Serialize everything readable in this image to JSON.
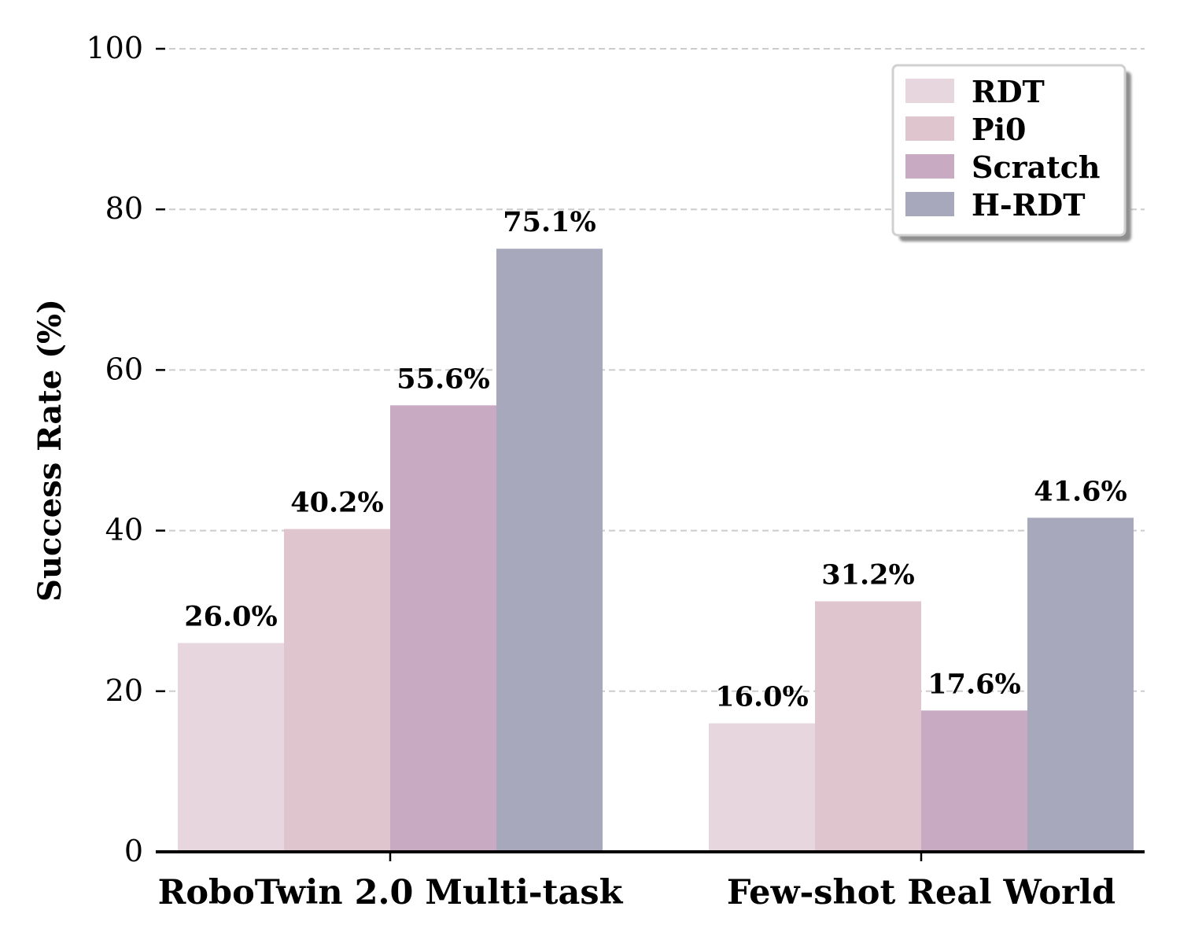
{
  "chart_data": {
    "type": "bar",
    "categories": [
      "RoboTwin 2.0 Multi-task",
      "Few-shot Real World"
    ],
    "series": [
      {
        "name": "RDT",
        "values": [
          26.0,
          16.0
        ],
        "color": "#e8d6de"
      },
      {
        "name": "Pi0",
        "values": [
          40.2,
          31.2
        ],
        "color": "#dfc6ce"
      },
      {
        "name": "Scratch",
        "values": [
          55.6,
          17.6
        ],
        "color": "#c8abc3"
      },
      {
        "name": "H-RDT",
        "values": [
          75.1,
          41.6
        ],
        "color": "#a8a8bd"
      }
    ],
    "data_labels": [
      [
        "26.0%",
        "16.0%"
      ],
      [
        "40.2%",
        "31.2%"
      ],
      [
        "55.6%",
        "17.6%"
      ],
      [
        "75.1%",
        "41.6%"
      ]
    ],
    "title": "",
    "xlabel": "",
    "ylabel": "Success Rate (%)",
    "ylim": [
      0,
      100
    ],
    "yticks": [
      0,
      20,
      40,
      60,
      80,
      100
    ],
    "ytick_labels": [
      "0",
      "20",
      "40",
      "60",
      "80",
      "100"
    ],
    "grid": "y-dashed",
    "legend_position": "top-right"
  }
}
